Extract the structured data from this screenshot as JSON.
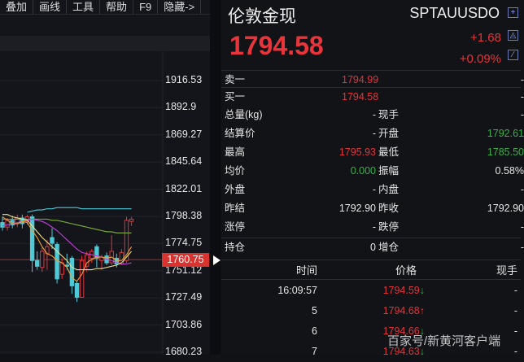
{
  "toolbar": {
    "items": [
      "叠加",
      "画线",
      "工具",
      "帮助",
      "F9",
      "隐藏->"
    ]
  },
  "chart_data": {
    "type": "candlestick",
    "y_ticks": [
      1916.53,
      1892.9,
      1869.27,
      1845.64,
      1822.01,
      1798.38,
      1774.75,
      1751.12,
      1727.49,
      1703.86,
      1680.23
    ],
    "ylim": [
      1680.23,
      1916.53
    ],
    "current_price": "1760.75",
    "candles": [
      [
        1793,
        1798,
        1786,
        1789
      ],
      [
        1789,
        1797,
        1786,
        1795
      ],
      [
        1795,
        1799,
        1788,
        1791
      ],
      [
        1792,
        1800,
        1789,
        1797
      ],
      [
        1797,
        1800,
        1788,
        1792
      ],
      [
        1794,
        1800,
        1791,
        1798
      ],
      [
        1798,
        1800,
        1750,
        1760
      ],
      [
        1760,
        1768,
        1752,
        1755
      ],
      [
        1754,
        1772,
        1750,
        1768
      ],
      [
        1766,
        1778,
        1752,
        1772
      ],
      [
        1780,
        1788,
        1770,
        1775
      ],
      [
        1774,
        1776,
        1740,
        1744
      ],
      [
        1748,
        1762,
        1744,
        1758
      ],
      [
        1756,
        1766,
        1752,
        1755
      ],
      [
        1762,
        1764,
        1731,
        1738
      ],
      [
        1740,
        1742,
        1724,
        1728
      ],
      [
        1728,
        1764,
        1728,
        1760
      ],
      [
        1755,
        1768,
        1750,
        1765
      ],
      [
        1762,
        1770,
        1758,
        1768
      ],
      [
        1772,
        1774,
        1754,
        1762
      ],
      [
        1760,
        1765,
        1752,
        1763
      ],
      [
        1764,
        1767,
        1756,
        1758
      ],
      [
        1758,
        1782,
        1756,
        1768
      ],
      [
        1762,
        1766,
        1754,
        1757
      ],
      [
        1757,
        1770,
        1756,
        1767
      ],
      [
        1760,
        1798,
        1758,
        1795
      ],
      [
        1794,
        1798,
        1790,
        1796
      ]
    ],
    "series": [
      {
        "color": "#4fc9d6",
        "values": [
          null,
          null,
          null,
          null,
          null,
          1802,
          1803,
          1804,
          1804,
          1805,
          1805,
          1806,
          1806,
          1806,
          1806,
          1806,
          1805,
          1805,
          1805,
          1805,
          1805,
          1805,
          1805,
          1805,
          1805,
          1805,
          1805
        ]
      },
      {
        "color": "#7fb33a",
        "values": [
          1796,
          1796,
          1796,
          1796,
          1796,
          1796,
          1796,
          1796,
          1796,
          1796,
          1795,
          1795,
          1794,
          1793,
          1792,
          1791,
          1790,
          1789,
          1788,
          1787,
          1786,
          1785,
          1785,
          1784,
          1784,
          1784,
          1784
        ]
      },
      {
        "color": "#c040d8",
        "values": [
          1790,
          1791,
          1792,
          1793,
          1794,
          1795,
          1796,
          1795,
          1794,
          1792,
          1789,
          1786,
          1782,
          1778,
          1774,
          1770,
          1767,
          1766,
          1765,
          1764,
          1763,
          1761,
          1760,
          1758,
          1757,
          1757,
          1758
        ]
      },
      {
        "color": "#f2e08a",
        "values": [
          1800,
          1800,
          1798,
          1797,
          1796,
          1795,
          1790,
          1785,
          1780,
          1776,
          1772,
          1768,
          1764,
          1760,
          1754,
          1752,
          1752,
          1752,
          1752,
          1753,
          1753,
          1754,
          1755,
          1756,
          1758,
          1763,
          1768
        ]
      },
      {
        "color": "#f0a030",
        "values": [
          1798,
          1795,
          1792,
          1792,
          1794,
          1793,
          1786,
          1780,
          1772,
          1766,
          1764,
          1760,
          1758,
          1754,
          1745,
          1742,
          1748,
          1758,
          1761,
          1763,
          1763,
          1762,
          1763,
          1760,
          1760,
          1765,
          1772
        ]
      }
    ],
    "up_color": "#e0343c",
    "down_color": "#4fc9d6"
  },
  "quote": {
    "name": "伦敦金现",
    "code": "SPTAUUSDO",
    "price": "1794.58",
    "change": "+1.68",
    "change_pct": "+0.09%"
  },
  "orderbook": [
    {
      "label": "卖一",
      "price": "1794.99",
      "vol": "-"
    },
    {
      "label": "买一",
      "price": "1794.58",
      "vol": "-"
    }
  ],
  "stats": [
    {
      "l1": "总量(kg)",
      "v1": "-",
      "c1": "",
      "l2": "现手",
      "v2": "-",
      "c2": ""
    },
    {
      "l1": "结算价",
      "v1": "-",
      "c1": "",
      "l2": "开盘",
      "v2": "1792.61",
      "c2": "green"
    },
    {
      "l1": "最高",
      "v1": "1795.93",
      "c1": "red",
      "l2": "最低",
      "v2": "1785.50",
      "c2": "green"
    },
    {
      "l1": "均价",
      "v1": "0.000",
      "c1": "green",
      "l2": "振幅",
      "v2": "0.58%",
      "c2": ""
    },
    {
      "l1": "外盘",
      "v1": "-",
      "c1": "",
      "l2": "内盘",
      "v2": "-",
      "c2": ""
    },
    {
      "l1": "昨结",
      "v1": "1792.90",
      "c1": "",
      "l2": "昨收",
      "v2": "1792.90",
      "c2": ""
    },
    {
      "l1": "涨停",
      "v1": "-",
      "c1": "",
      "l2": "跌停",
      "v2": "-",
      "c2": ""
    },
    {
      "l1": "持仓",
      "v1": "0",
      "c1": "",
      "l2": "增仓",
      "v2": "-",
      "c2": ""
    }
  ],
  "ticks": {
    "headers": [
      "时间",
      "价格",
      "现手"
    ],
    "rows": [
      {
        "time": "16:09:57",
        "price": "1794.59",
        "dir": "down",
        "vol": "-"
      },
      {
        "time": "5",
        "price": "1794.68",
        "dir": "up",
        "vol": "-"
      },
      {
        "time": "6",
        "price": "1794.66",
        "dir": "down",
        "vol": "-"
      },
      {
        "time": "7",
        "price": "1794.63",
        "dir": "down",
        "vol": "-"
      }
    ]
  },
  "watermark": "百家号/新黄河客户端"
}
